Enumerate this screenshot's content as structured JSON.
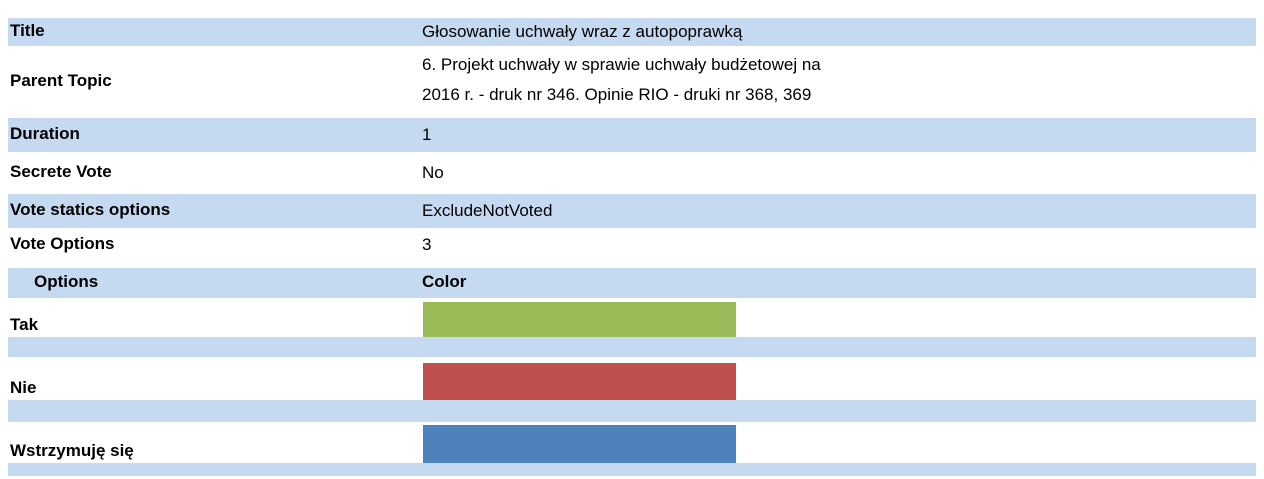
{
  "fields": [
    {
      "label": "Title",
      "value": "Głosowanie uchwały wraz z autopoprawką"
    },
    {
      "label": "Parent Topic",
      "value": "6. Projekt uchwały w sprawie uchwały budżetowej na 2016 r. - druk nr 346. Opinie RIO - druki nr 368, 369"
    },
    {
      "label": "Duration",
      "value": "1"
    },
    {
      "label": "Secrete Vote",
      "value": "No"
    },
    {
      "label": "Vote statics options",
      "value": "ExcludeNotVoted"
    },
    {
      "label": "Vote Options",
      "value": "3"
    }
  ],
  "options_table": {
    "headers": [
      "Options",
      "Color"
    ],
    "rows": [
      {
        "name": "Tak",
        "color": "#9bbb59"
      },
      {
        "name": "Nie",
        "color": "#c0504d"
      },
      {
        "name": "Wstrzymuję się",
        "color": "#4f81bd"
      }
    ]
  }
}
